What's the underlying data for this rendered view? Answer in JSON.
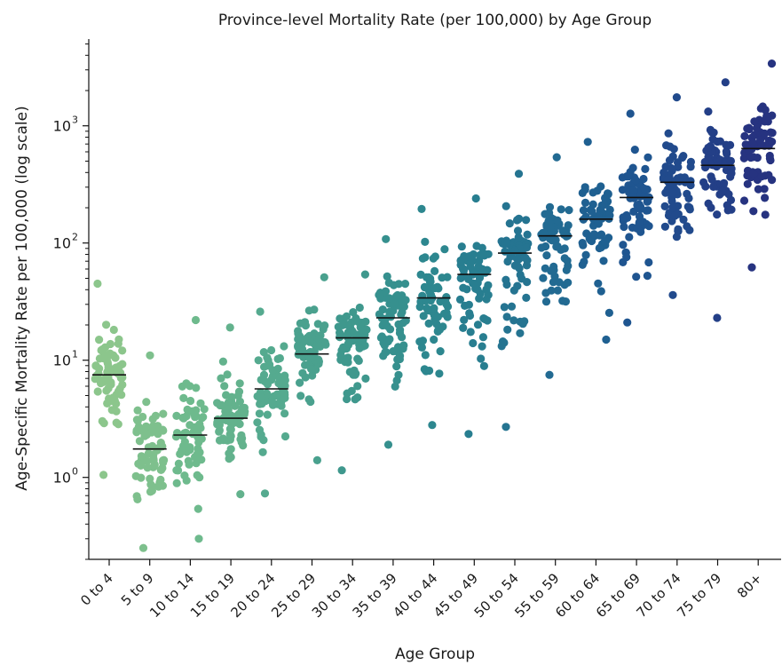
{
  "chart_data": {
    "type": "scatter",
    "title": "Province-level Mortality Rate (per 100,000) by Age Group",
    "xlabel": "Age Group",
    "ylabel": "Age-Specific Mortality Rate per 100,000 (log scale)",
    "yscale": "log",
    "ylim": [
      0.2,
      5500
    ],
    "grid": false,
    "legend": "none",
    "y_ticks": [
      {
        "value": 1,
        "base": "10",
        "exp": "0"
      },
      {
        "value": 10,
        "base": "10",
        "exp": "1"
      },
      {
        "value": 100,
        "base": "10",
        "exp": "2"
      },
      {
        "value": 1000,
        "base": "10",
        "exp": "3"
      }
    ],
    "categories": [
      "0 to 4",
      "5 to 9",
      "10 to 14",
      "15 to 19",
      "20 to 24",
      "25 to 29",
      "30 to 34",
      "35 to 39",
      "40 to 44",
      "45 to 49",
      "50 to 54",
      "55 to 59",
      "60 to 64",
      "65 to 69",
      "70 to 74",
      "75 to 79",
      "80+"
    ],
    "colors": [
      "#8cc68c",
      "#7ec08d",
      "#6eba8d",
      "#63b28d",
      "#55aa8f",
      "#4aa18e",
      "#3f988d",
      "#36908e",
      "#2d878f",
      "#287e90",
      "#257491",
      "#226a92",
      "#1f6091",
      "#1f5590",
      "#214a8c",
      "#233f87",
      "#263380"
    ],
    "medians": [
      7.5,
      1.75,
      2.3,
      3.2,
      5.7,
      11.3,
      15.5,
      23,
      34,
      54,
      82,
      115,
      160,
      245,
      330,
      460,
      640
    ],
    "groups": [
      {
        "age": "0 to 4",
        "min": 1.05,
        "max": 45,
        "n": 70
      },
      {
        "age": "5 to 9",
        "min": 0.25,
        "max": 11,
        "n": 70
      },
      {
        "age": "10 to 14",
        "min": 0.3,
        "max": 22,
        "n": 70
      },
      {
        "age": "15 to 19",
        "min": 0.72,
        "max": 19,
        "n": 70
      },
      {
        "age": "20 to 24",
        "min": 0.73,
        "max": 26,
        "n": 70
      },
      {
        "age": "25 to 29",
        "min": 1.4,
        "max": 51,
        "n": 70
      },
      {
        "age": "30 to 34",
        "min": 1.15,
        "max": 54,
        "n": 70
      },
      {
        "age": "35 to 39",
        "min": 1.9,
        "max": 108,
        "n": 70
      },
      {
        "age": "40 to 44",
        "min": 2.8,
        "max": 195,
        "n": 70
      },
      {
        "age": "45 to 49",
        "min": 2.35,
        "max": 240,
        "n": 70
      },
      {
        "age": "50 to 54",
        "min": 2.7,
        "max": 390,
        "n": 70
      },
      {
        "age": "55 to 59",
        "min": 7.5,
        "max": 540,
        "n": 70
      },
      {
        "age": "60 to 64",
        "min": 15,
        "max": 730,
        "n": 70
      },
      {
        "age": "65 to 69",
        "min": 21,
        "max": 1270,
        "n": 70
      },
      {
        "age": "70 to 74",
        "min": 36,
        "max": 1750,
        "n": 70
      },
      {
        "age": "75 to 79",
        "min": 23,
        "max": 2350,
        "n": 70
      },
      {
        "age": "80+",
        "min": 62,
        "max": 3400,
        "n": 70
      }
    ]
  }
}
